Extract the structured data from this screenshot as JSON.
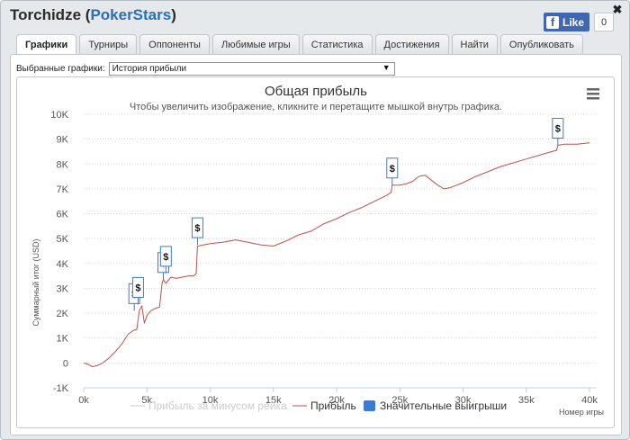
{
  "window": {
    "player_name": "Torchidze",
    "room_open": "(",
    "room_name": "PokerStars",
    "room_close": ")",
    "close_label": "✖"
  },
  "facebook": {
    "logo": "f",
    "like_label": "Like",
    "count": "0"
  },
  "tabs": [
    {
      "label": "Графики",
      "active": true
    },
    {
      "label": "Турниры",
      "active": false
    },
    {
      "label": "Оппоненты",
      "active": false
    },
    {
      "label": "Любимые игры",
      "active": false
    },
    {
      "label": "Статистика",
      "active": false
    },
    {
      "label": "Достижения",
      "active": false
    },
    {
      "label": "Найти",
      "active": false
    },
    {
      "label": "Опубликовать",
      "active": false
    }
  ],
  "selector": {
    "label": "Выбранные графики:",
    "value": "История прибыли",
    "arrow": "▼"
  },
  "chart_data": {
    "type": "line",
    "title": "Общая прибыль",
    "subtitle": "Чтобы увеличить изображение, кликните и перетащите мышкой внутрь графика.",
    "ylabel": "Суммарный итог (USD)",
    "xlabel": "Номер игры",
    "xlim": [
      0,
      40500
    ],
    "ylim": [
      -1000,
      10000
    ],
    "x_ticks": [
      0,
      5000,
      10000,
      15000,
      20000,
      25000,
      30000,
      35000,
      40000
    ],
    "x_tick_labels": [
      "0k",
      "5k",
      "10k",
      "15k",
      "20k",
      "25k",
      "30k",
      "35k",
      "40k"
    ],
    "y_ticks": [
      -1000,
      0,
      1000,
      2000,
      3000,
      4000,
      5000,
      6000,
      7000,
      8000,
      9000,
      10000
    ],
    "y_tick_labels": [
      "-1K",
      "0",
      "1K",
      "2K",
      "3K",
      "4K",
      "5K",
      "6K",
      "7K",
      "8K",
      "9K",
      "10K"
    ],
    "grid": "horizontal dotted",
    "legend_position": "bottom",
    "series": [
      {
        "name": "Прибыль за минусом рейка",
        "color": "#cccccc",
        "visible": false
      },
      {
        "name": "Прибыль",
        "color": "#c0504d",
        "x": [
          0,
          300,
          700,
          1100,
          1500,
          2000,
          2500,
          3000,
          3500,
          3900,
          4200,
          4400,
          4600,
          4800,
          5000,
          5300,
          5700,
          6000,
          6200,
          6300,
          6500,
          6900,
          7300,
          7800,
          8300,
          8700,
          8900,
          9000,
          9500,
          10000,
          11000,
          12000,
          13000,
          14000,
          15000,
          16000,
          17000,
          18000,
          19000,
          20000,
          21000,
          22000,
          23000,
          24000,
          24300,
          24400,
          25000,
          25500,
          26000,
          26500,
          27000,
          28000,
          28500,
          29000,
          30000,
          31000,
          32000,
          33000,
          34000,
          35000,
          36000,
          37000,
          37400,
          37500,
          38000,
          39000,
          40000
        ],
        "y": [
          0,
          -50,
          -150,
          -100,
          0,
          200,
          450,
          750,
          1150,
          1300,
          1350,
          2100,
          2300,
          1600,
          1900,
          2100,
          2200,
          2250,
          3200,
          3350,
          3200,
          3450,
          3400,
          3450,
          3500,
          3500,
          3600,
          4700,
          4750,
          4800,
          4850,
          4950,
          4850,
          4750,
          4700,
          4900,
          5150,
          5300,
          5600,
          5800,
          6050,
          6250,
          6500,
          6750,
          6850,
          7150,
          7150,
          7200,
          7300,
          7500,
          7550,
          7150,
          7000,
          7050,
          7250,
          7500,
          7700,
          7900,
          8050,
          8200,
          8350,
          8500,
          8550,
          8750,
          8800,
          8800,
          8850
        ]
      },
      {
        "name": "Значительные выигрыши",
        "color": "#3a7bd5",
        "marker": "$",
        "x": [
          4000,
          4300,
          6300,
          6500,
          9000,
          24400,
          37500
        ],
        "y": [
          2100,
          2350,
          3350,
          3600,
          4750,
          7150,
          8750
        ]
      }
    ]
  }
}
